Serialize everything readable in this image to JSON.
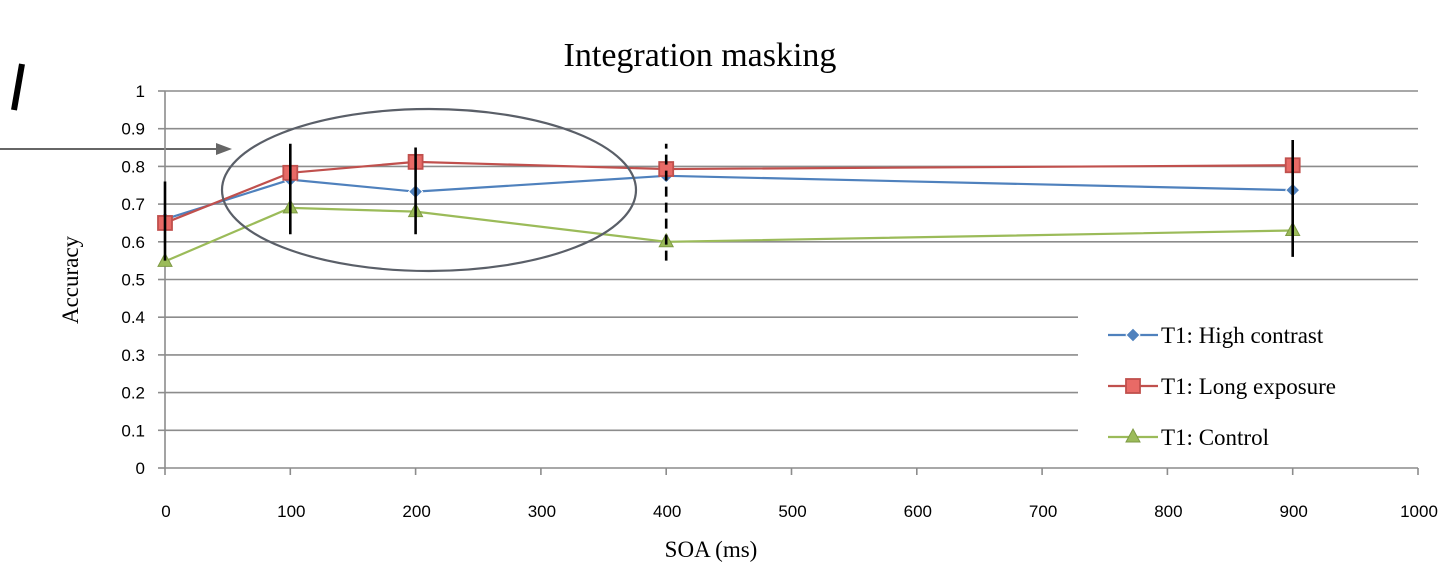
{
  "chart_data": {
    "type": "line",
    "title": "Integration masking",
    "xlabel": "SOA (ms)",
    "ylabel": "Accuracy",
    "xlim": [
      0,
      1000
    ],
    "ylim": [
      0,
      1
    ],
    "xticks": [
      0,
      100,
      200,
      300,
      400,
      500,
      600,
      700,
      800,
      900,
      1000
    ],
    "yticks": [
      0,
      0.1,
      0.2,
      0.3,
      0.4,
      0.5,
      0.6,
      0.7,
      0.8,
      0.9,
      1
    ],
    "grid": true,
    "legend_position": "bottom-right",
    "series": [
      {
        "name": "T1: High contrast",
        "color": "#4f81bd",
        "marker": "diamond",
        "x": [
          0,
          100,
          200,
          400,
          900
        ],
        "y": [
          0.66,
          0.765,
          0.733,
          0.775,
          0.737
        ]
      },
      {
        "name": "T1: Long exposure",
        "color": "#c0504d",
        "marker": "square",
        "x": [
          0,
          100,
          200,
          400,
          900
        ],
        "y": [
          0.65,
          0.783,
          0.812,
          0.793,
          0.803
        ],
        "error_bars": [
          [
            0.55,
            0.76
          ],
          [
            0.62,
            0.86
          ],
          [
            0.62,
            0.85
          ],
          [
            0.55,
            0.86
          ],
          [
            0.56,
            0.87
          ]
        ]
      },
      {
        "name": "T1: Control",
        "color": "#9bbb59",
        "marker": "triangle",
        "x": [
          0,
          100,
          200,
          400,
          900
        ],
        "y": [
          0.548,
          0.69,
          0.68,
          0.6,
          0.63
        ]
      }
    ]
  }
}
